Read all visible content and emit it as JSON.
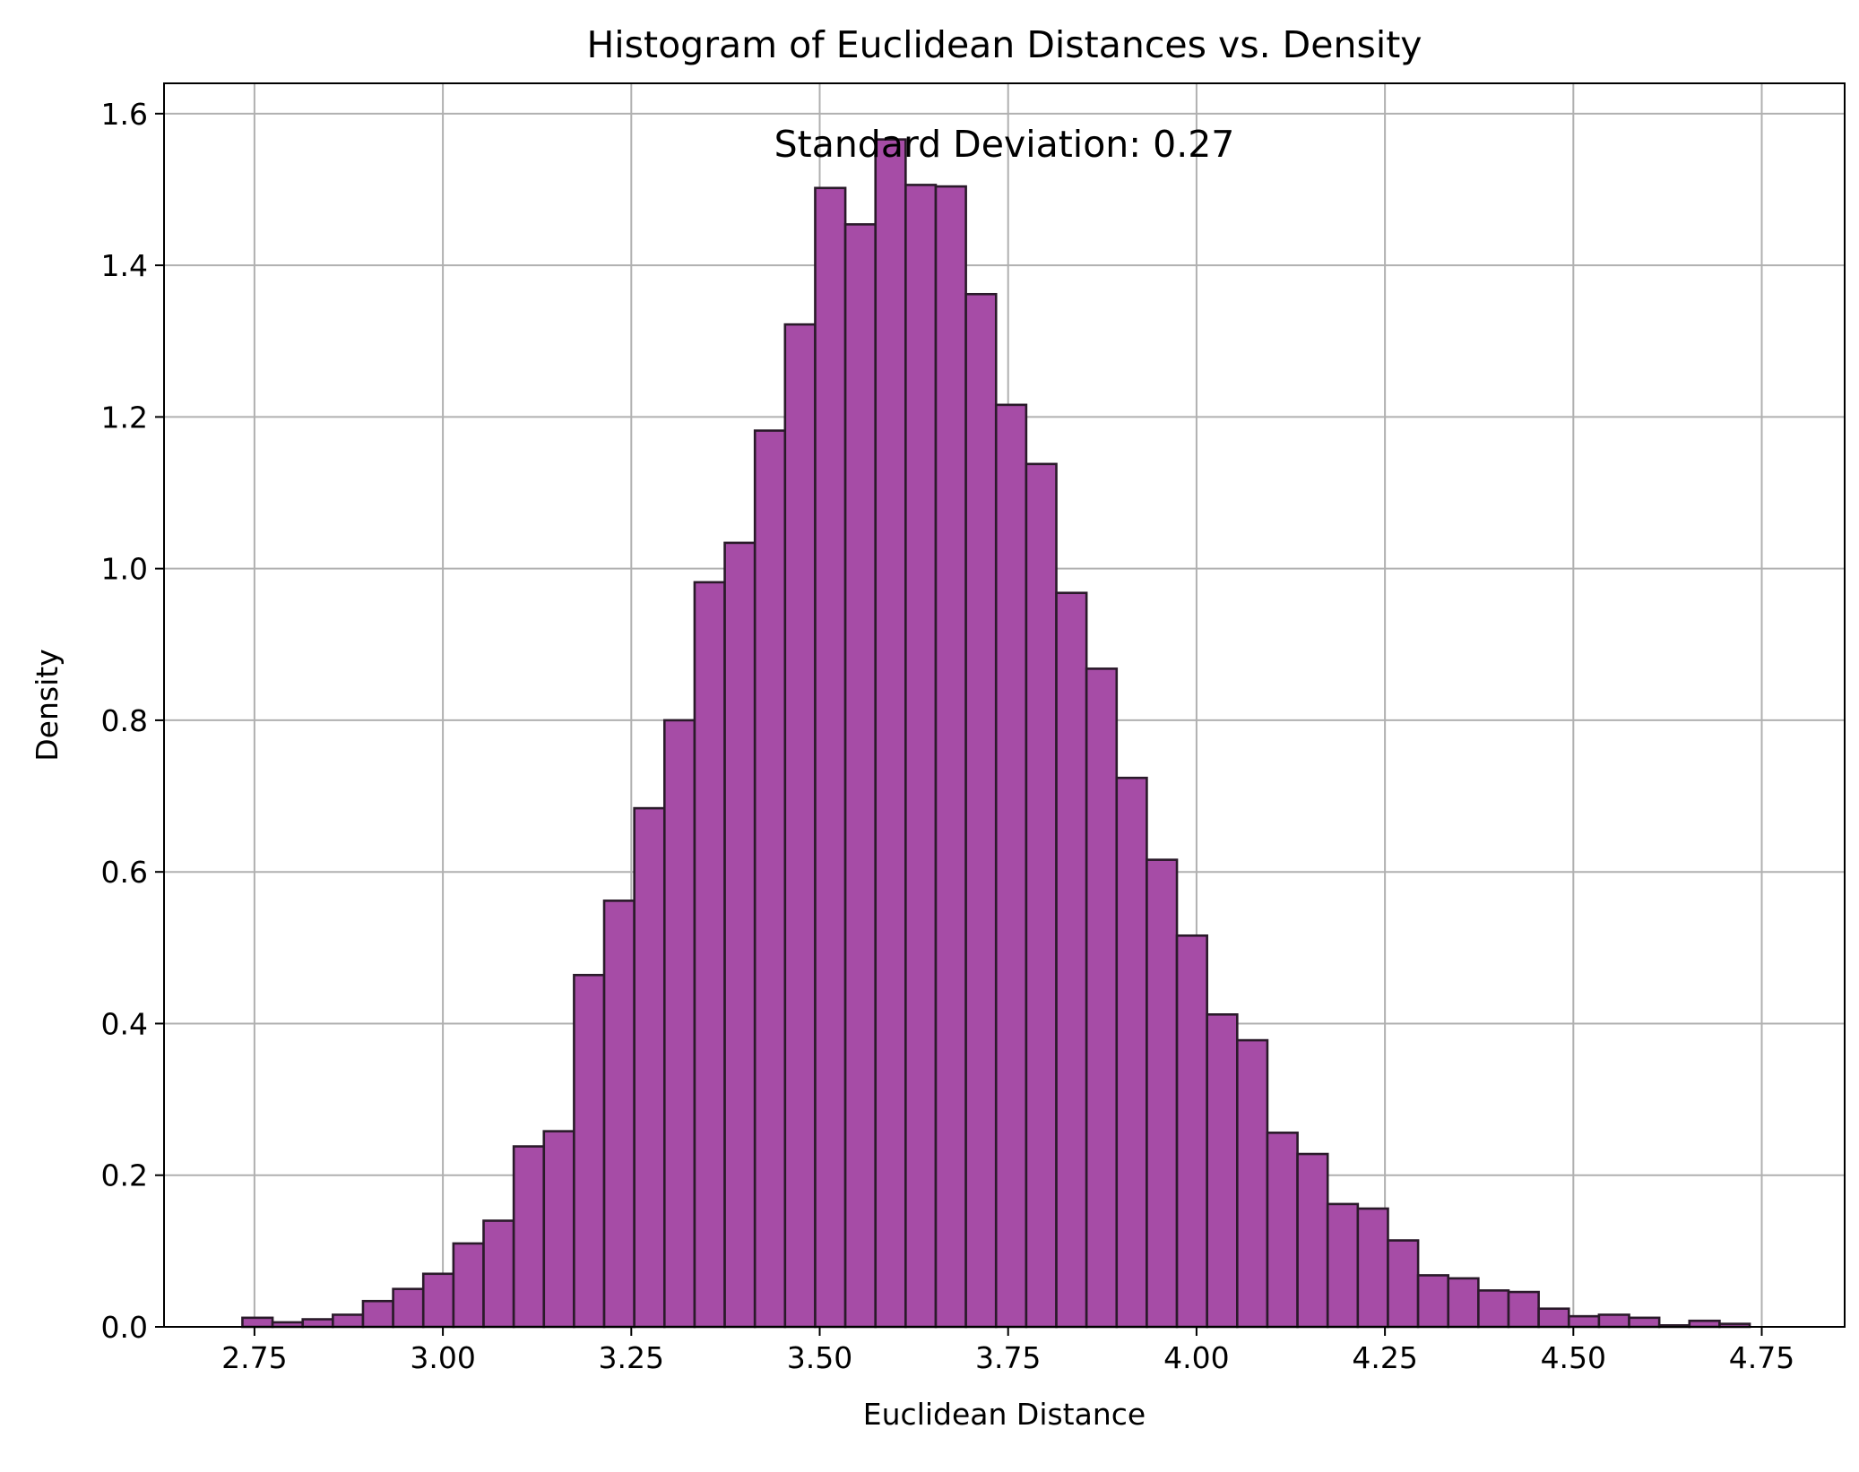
{
  "chart_data": {
    "type": "bar",
    "title": "Histogram of Euclidean Distances vs. Density",
    "xlabel": "Euclidean Distance",
    "ylabel": "Density",
    "annotation": "Standard Deviation: 0.27",
    "xlim": [
      2.63,
      4.86
    ],
    "ylim": [
      0,
      1.64
    ],
    "xticks": [
      "2.75",
      "3.00",
      "3.25",
      "3.50",
      "3.75",
      "4.00",
      "4.25",
      "4.50",
      "4.75"
    ],
    "yticks": [
      "0.0",
      "0.2",
      "0.4",
      "0.6",
      "0.8",
      "1.0",
      "1.2",
      "1.4",
      "1.6"
    ],
    "grid": true,
    "bin_start": 2.734,
    "bin_width": 0.04,
    "values": [
      0.012,
      0.006,
      0.01,
      0.016,
      0.034,
      0.05,
      0.07,
      0.11,
      0.14,
      0.238,
      0.258,
      0.464,
      0.562,
      0.684,
      0.8,
      0.982,
      1.034,
      1.182,
      1.322,
      1.502,
      1.454,
      1.566,
      1.506,
      1.504,
      1.362,
      1.216,
      1.138,
      0.968,
      0.868,
      0.724,
      0.616,
      0.516,
      0.412,
      0.378,
      0.256,
      0.228,
      0.162,
      0.156,
      0.114,
      0.068,
      0.064,
      0.048,
      0.046,
      0.024,
      0.014,
      0.016,
      0.012,
      0.002,
      0.008,
      0.004
    ],
    "colors": {
      "bar_fill": "#a64ca6",
      "bar_edge": "#2a1a2a",
      "grid": "#b0b0b0",
      "axis": "#000000"
    }
  }
}
